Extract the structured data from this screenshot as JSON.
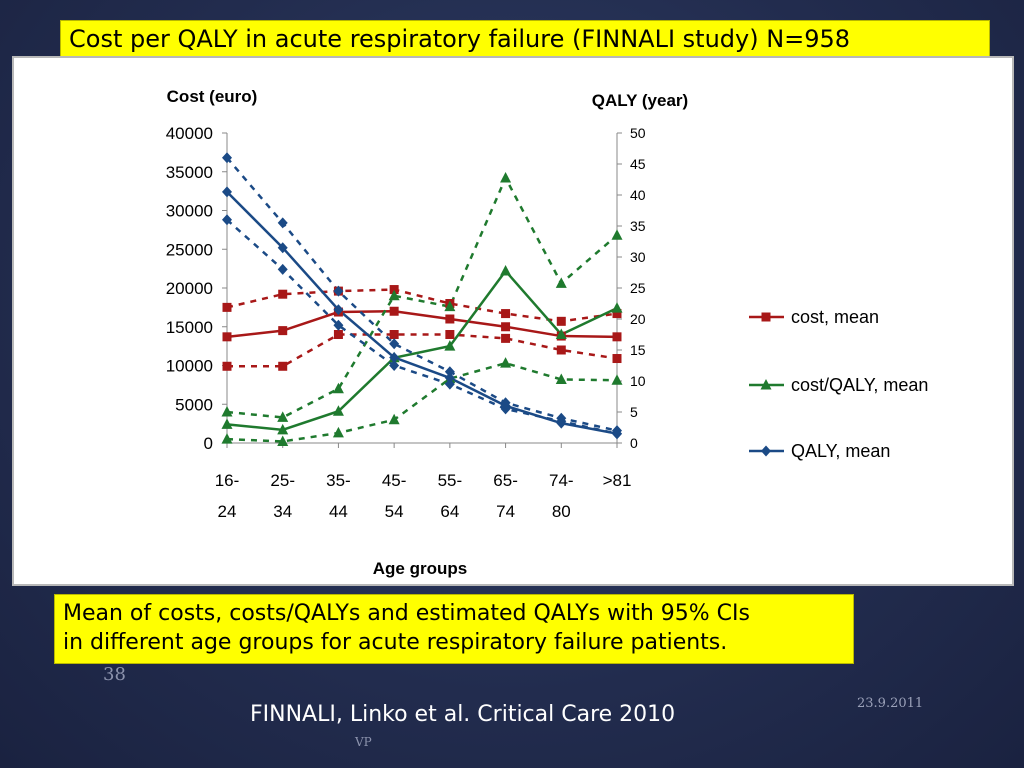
{
  "slide": {
    "title": "Cost per QALY in acute respiratory failure (FINNALI study) N=958",
    "caption_line1": "Mean of costs, costs/QALYs and estimated QALYs with 95% CIs",
    "caption_line2": "in different age groups for acute respiratory failure patients.",
    "page_number": "38",
    "date": "23.9.2011",
    "source": "FINNALI, Linko et al. Critical Care 2010",
    "author_mark": "VP"
  },
  "colors": {
    "cost": "#a81818",
    "cost_per_qaly": "#1f7a2e",
    "qaly": "#1b4a86",
    "title_box": "#ffff00"
  },
  "chart_data": {
    "type": "line",
    "xlabel": "Age groups",
    "ylabel_left": "Cost (euro)",
    "ylabel_right": "QALY (year)",
    "categories": [
      [
        "16-",
        "24"
      ],
      [
        "25-",
        "34"
      ],
      [
        "35-",
        "44"
      ],
      [
        "45-",
        "54"
      ],
      [
        "55-",
        "64"
      ],
      [
        "65-",
        "74"
      ],
      [
        "74-",
        "80"
      ],
      [
        ">81",
        ""
      ]
    ],
    "ylim_left": [
      0,
      40000
    ],
    "yticks_left": [
      0,
      5000,
      10000,
      15000,
      20000,
      25000,
      30000,
      35000,
      40000
    ],
    "ylim_right": [
      0,
      50
    ],
    "yticks_right": [
      0,
      5,
      10,
      15,
      20,
      25,
      30,
      35,
      40,
      45,
      50
    ],
    "grid": false,
    "legend_position": "right",
    "series": [
      {
        "name": "cost, mean",
        "axis": "left",
        "marker": "square",
        "color": "#a81818",
        "mean": [
          13700,
          14500,
          16900,
          17000,
          16000,
          15000,
          13800,
          13700
        ],
        "ci_upper": [
          17500,
          19200,
          19600,
          19800,
          18000,
          16700,
          15700,
          16700
        ],
        "ci_lower": [
          9900,
          9900,
          14000,
          14000,
          14000,
          13500,
          12000,
          10900
        ]
      },
      {
        "name": "cost/QALY, mean",
        "axis": "left",
        "marker": "triangle",
        "color": "#1f7a2e",
        "mean": [
          2400,
          1700,
          4100,
          11000,
          12500,
          22200,
          14000,
          17400
        ],
        "ci_upper": [
          4000,
          3300,
          7000,
          19000,
          17600,
          34200,
          20600,
          26800
        ],
        "ci_lower": [
          500,
          200,
          1300,
          3000,
          8300,
          10300,
          8200,
          8100
        ]
      },
      {
        "name": "QALY, mean",
        "axis": "right",
        "marker": "diamond",
        "color": "#1b4a86",
        "mean": [
          40.5,
          31.5,
          21.5,
          13.8,
          10.5,
          6.0,
          3.2,
          1.5
        ],
        "ci_upper": [
          46.0,
          35.5,
          24.5,
          16.0,
          11.5,
          6.5,
          4.0,
          2.0
        ],
        "ci_lower": [
          36.0,
          28.0,
          19.0,
          12.5,
          9.5,
          5.5,
          3.5,
          1.5
        ]
      }
    ]
  }
}
